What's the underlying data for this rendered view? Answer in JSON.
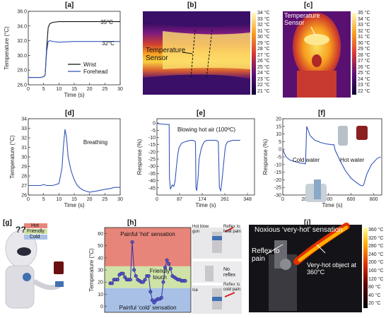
{
  "labels": [
    "[a]",
    "[b]",
    "[c]",
    "[d]",
    "[e]",
    "[f]",
    "[g]",
    "[h]",
    "[i]"
  ],
  "colors": {
    "blue": "#3355bb",
    "black": "#111111",
    "hot_zone": "#e8857a",
    "friendly_zone": "#cfe2a8",
    "cold_zone": "#a8c0e6"
  },
  "chart_data": [
    {
      "id": "a",
      "type": "line",
      "xlabel": "Time (s)",
      "ylabel": "Temperature (°C)",
      "xlim": [
        0,
        30
      ],
      "ylim": [
        26,
        36
      ],
      "xticks": [
        0,
        5,
        10,
        15,
        20,
        25,
        30
      ],
      "yticks": [
        26.0,
        28.0,
        30.0,
        32.0,
        34.0,
        36.0
      ],
      "annotations": [
        "35°C",
        "32°C"
      ],
      "legend": "bottom-right",
      "series": [
        {
          "name": "Wrist",
          "color": "#111111",
          "x": [
            0,
            4,
            5,
            5.5,
            6,
            6.5,
            7,
            8,
            10,
            15,
            20,
            25,
            30
          ],
          "y": [
            27,
            27,
            27.1,
            27.3,
            31,
            33.8,
            34.3,
            34.5,
            34.6,
            34.6,
            34.6,
            34.6,
            34.6
          ]
        },
        {
          "name": "Forehead",
          "color": "#3355bb",
          "x": [
            0,
            4,
            5,
            5.5,
            6,
            6.5,
            7,
            8,
            10,
            15,
            20,
            25,
            30
          ],
          "y": [
            27,
            27,
            27.1,
            27.3,
            30.5,
            31.9,
            32.0,
            31.9,
            31.8,
            31.9,
            31.9,
            31.9,
            31.9
          ]
        }
      ]
    },
    {
      "id": "b",
      "type": "heatmap",
      "annotation": "Temperature Sensor",
      "colorbar_ticks": [
        "34 °C",
        "33 °C",
        "32 °C",
        "31 °C",
        "30 °C",
        "29 °C",
        "28 °C",
        "27 °C",
        "26 °C",
        "25 °C",
        "24 °C",
        "23 °C",
        "22 °C",
        "21 °C"
      ]
    },
    {
      "id": "c",
      "type": "heatmap",
      "annotation": "Temperature Sensor",
      "colorbar_ticks": [
        "35 °C",
        "34 °C",
        "33 °C",
        "32 °C",
        "31 °C",
        "30 °C",
        "29 °C",
        "28 °C",
        "27 °C",
        "26 °C",
        "25 °C",
        "24 °C",
        "23 °C",
        "22 °C"
      ]
    },
    {
      "id": "d",
      "type": "line",
      "xlabel": "Time (s)",
      "ylabel": "Temperature (°C)",
      "xlim": [
        0,
        30
      ],
      "ylim": [
        26,
        34
      ],
      "xticks": [
        0,
        5,
        10,
        15,
        20,
        25,
        30
      ],
      "yticks": [
        26,
        27,
        28,
        29,
        30,
        31,
        32,
        33,
        34
      ],
      "annotations": [
        "Breathing"
      ],
      "series": [
        {
          "color": "#3355bb",
          "x": [
            0,
            4,
            5,
            6,
            7,
            8,
            9,
            10,
            11,
            11.5,
            12,
            12.5,
            13,
            14,
            15,
            16,
            17,
            18,
            19,
            20,
            22,
            25,
            27,
            28,
            30
          ],
          "y": [
            27.0,
            27.0,
            27.1,
            27.0,
            27.0,
            27.0,
            27.1,
            27.2,
            28.8,
            31.2,
            32.9,
            32.0,
            30.0,
            28.5,
            27.6,
            27.0,
            26.7,
            26.5,
            26.4,
            26.3,
            26.4,
            26.6,
            26.7,
            26.8,
            26.8
          ]
        }
      ]
    },
    {
      "id": "e",
      "type": "line",
      "xlabel": "Time (s)",
      "ylabel": "Response (%)",
      "xlim": [
        0,
        375
      ],
      "ylim": [
        -50,
        3
      ],
      "xticks": [
        0,
        87,
        174,
        261,
        348
      ],
      "yticks": [
        0,
        -5,
        -10,
        -15,
        -20,
        -25,
        -30,
        -35,
        -40,
        -45
      ],
      "annotations": [
        "Blowing hot air (100ºC)"
      ],
      "series": [
        {
          "color": "#3355bb",
          "x": [
            0,
            5,
            40,
            47,
            48,
            52,
            56,
            60,
            65,
            70,
            75,
            80,
            85,
            95,
            108,
            118,
            128,
            140,
            148,
            150,
            153,
            158,
            162,
            170,
            176,
            182,
            192,
            205,
            210,
            215,
            228,
            236,
            240,
            245,
            250,
            258,
            262,
            265,
            272,
            282,
            292,
            310,
            320
          ],
          "y": [
            0,
            -0.5,
            -1,
            -1,
            -38,
            -46,
            -44,
            -43,
            -44,
            -40,
            -30,
            -22,
            -17,
            -14,
            -13,
            -12.5,
            -12,
            -12,
            -13,
            -45,
            -47,
            -38,
            -25,
            -18,
            -15,
            -13,
            -12,
            -12,
            -12,
            -12,
            -12,
            -13,
            -45,
            -47,
            -40,
            -25,
            -18,
            -15,
            -13,
            -12.5,
            -12,
            -12,
            -12
          ]
        }
      ]
    },
    {
      "id": "f",
      "type": "line",
      "xlabel": "Time (s)",
      "ylabel": "Response (%)",
      "xlim": [
        0,
        870
      ],
      "ylim": [
        -30,
        20
      ],
      "xticks": [
        0,
        200,
        400,
        600,
        800
      ],
      "yticks": [
        20,
        15,
        10,
        5,
        0,
        -5,
        -10,
        -15,
        -20,
        -25,
        -30
      ],
      "annotations": [
        "Cold water",
        "Hot water"
      ],
      "series": [
        {
          "color": "#3355bb",
          "x": [
            0,
            10,
            30,
            60,
            100,
            150,
            200,
            210,
            240,
            280,
            330,
            380,
            430,
            450,
            460,
            500,
            550,
            600,
            650,
            680,
            700,
            710,
            740,
            780,
            830,
            860
          ],
          "y": [
            0,
            -2,
            -5,
            -7,
            -8,
            -9,
            -9.5,
            15,
            9,
            6,
            4.5,
            3.5,
            3,
            3,
            -0.5,
            -7,
            -14,
            -19,
            -22,
            -23.5,
            -24,
            -23.5,
            -16,
            -10,
            -6,
            -5
          ]
        }
      ]
    },
    {
      "id": "h",
      "type": "line",
      "ylabel": "Temperature (°C)",
      "ylim": [
        -5,
        65
      ],
      "yticks": [
        -5,
        0,
        5,
        10,
        15,
        20,
        25,
        30,
        35,
        40,
        45,
        50,
        55,
        60
      ],
      "zones": [
        {
          "name": "Painful ‘hot’ sensation",
          "from": 33,
          "to": 65,
          "color": "#e8857a"
        },
        {
          "name": "Friendly",
          "from": 15,
          "to": 33,
          "color": "#cfe2a8"
        },
        {
          "name": "Painful ‘cold’ sensation",
          "from": -5,
          "to": 15,
          "color": "#a8c0e6"
        }
      ],
      "annotations": [
        "Painful ‘hot’ sensation",
        "Friendly touch",
        "Painful ‘cold’ sensation"
      ],
      "series": [
        {
          "color": "#3333aa",
          "x": [
            0,
            1,
            2,
            3,
            4,
            5,
            6,
            7,
            8,
            9,
            10,
            11,
            12,
            13,
            14,
            15,
            16,
            17,
            18,
            19,
            20,
            21,
            22,
            23,
            24,
            25,
            26,
            27,
            28,
            29,
            30,
            31,
            32,
            33,
            34,
            35,
            36,
            37,
            38,
            39,
            40,
            41
          ],
          "y": [
            19,
            19,
            22,
            22,
            22,
            26,
            27,
            27,
            24,
            22,
            22,
            22,
            53,
            30,
            25,
            22,
            21,
            20,
            20,
            22,
            25,
            25,
            12,
            5,
            3,
            5,
            6,
            6,
            7,
            20,
            32,
            38,
            35,
            31,
            25,
            24,
            23,
            22,
            22,
            21,
            21,
            21
          ]
        }
      ]
    }
  ],
  "text": {
    "f_label_cold": "Cold water",
    "f_label_hot": "Hot water",
    "g_hot": "Hot",
    "g_friendly": "Friendly",
    "g_cold": "Cold",
    "g_question": "??",
    "h_hot_blow": "Hot blow gun",
    "h_reflex_heat": "Reflex to heat pain",
    "h_no_reflex": "No reflex",
    "h_ice": "Ice",
    "h_reflex_cold": "Reflex to cold pain",
    "i_title": "Noxious ‘very-hot’ sensation",
    "i_reflex": "Reflex to pain",
    "i_object": "Very-hot object at 360°C",
    "i_colorbar": [
      "360 °C",
      "320 °C",
      "280 °C",
      "240 °C",
      "200 °C",
      "160 °C",
      "120 °C",
      "80 °C",
      "40 °C",
      "20 °C"
    ]
  }
}
